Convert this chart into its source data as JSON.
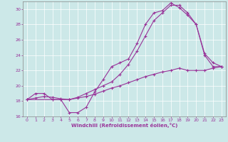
{
  "xlabel": "Windchill (Refroidissement éolien,°C)",
  "bg_color": "#cce8e8",
  "grid_color": "#aacccc",
  "line_color": "#993399",
  "xlim": [
    -0.5,
    23.5
  ],
  "ylim": [
    16,
    31
  ],
  "xticks": [
    0,
    1,
    2,
    3,
    4,
    5,
    6,
    7,
    8,
    9,
    10,
    11,
    12,
    13,
    14,
    15,
    16,
    17,
    18,
    19,
    20,
    21,
    22,
    23
  ],
  "yticks": [
    16,
    18,
    20,
    22,
    24,
    26,
    28,
    30
  ],
  "line1_x": [
    0,
    1,
    2,
    3,
    4,
    5,
    6,
    7,
    8,
    9,
    10,
    11,
    12,
    13,
    14,
    15,
    16,
    17,
    18,
    19,
    20,
    21,
    22,
    23
  ],
  "line1_y": [
    18.2,
    19.0,
    19.0,
    18.2,
    18.2,
    16.5,
    16.5,
    17.2,
    19.2,
    20.8,
    22.5,
    23.0,
    23.5,
    25.5,
    28.0,
    29.5,
    29.8,
    30.8,
    30.2,
    29.2,
    28.0,
    24.0,
    22.5,
    22.5
  ],
  "line2_x": [
    0,
    1,
    2,
    3,
    4,
    5,
    6,
    7,
    8,
    9,
    10,
    11,
    12,
    13,
    14,
    15,
    16,
    17,
    18,
    19,
    20,
    21,
    22,
    23
  ],
  "line2_y": [
    18.2,
    18.4,
    18.6,
    18.5,
    18.3,
    18.2,
    18.4,
    18.6,
    18.9,
    19.3,
    19.7,
    20.0,
    20.4,
    20.8,
    21.2,
    21.5,
    21.8,
    22.0,
    22.3,
    22.0,
    22.0,
    22.0,
    22.3,
    22.5
  ],
  "line3_x": [
    0,
    3,
    4,
    5,
    6,
    7,
    8,
    9,
    10,
    11,
    12,
    13,
    14,
    15,
    16,
    17,
    18,
    19,
    20,
    21,
    22,
    23
  ],
  "line3_y": [
    18.2,
    18.2,
    18.2,
    18.2,
    18.5,
    19.0,
    19.5,
    20.0,
    20.5,
    21.5,
    22.8,
    24.5,
    26.5,
    28.5,
    29.5,
    30.5,
    30.5,
    29.5,
    28.0,
    24.2,
    23.0,
    22.5
  ]
}
